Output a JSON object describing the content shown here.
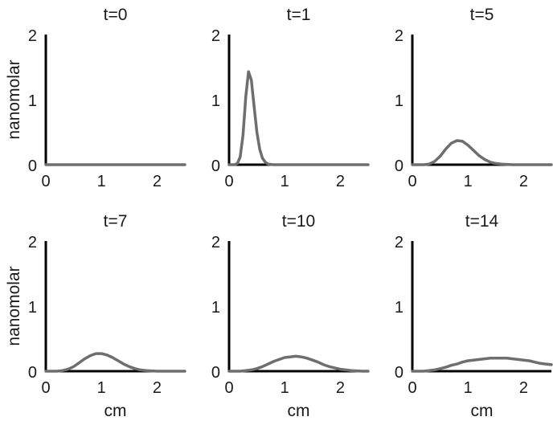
{
  "chart_data": [
    {
      "type": "line",
      "title": "t=0",
      "xlabel": "",
      "ylabel": "nanomolar",
      "xlim": [
        0,
        2.5
      ],
      "ylim": [
        0,
        2
      ],
      "xticks": [
        "0",
        "1",
        "2"
      ],
      "yticks": [
        "0",
        "1",
        "2"
      ],
      "series": [
        {
          "x": [
            0,
            0.25,
            0.5,
            0.75,
            1.0,
            1.25,
            1.5,
            1.75,
            2.0,
            2.25,
            2.5
          ],
          "y": [
            0,
            0,
            0,
            0,
            0,
            0,
            0,
            0,
            0,
            0,
            0
          ]
        }
      ]
    },
    {
      "type": "line",
      "title": "t=1",
      "xlabel": "",
      "ylabel": "",
      "xlim": [
        0,
        2.5
      ],
      "ylim": [
        0,
        2
      ],
      "xticks": [
        "0",
        "1",
        "2"
      ],
      "yticks": [
        "0",
        "1",
        "2"
      ],
      "series": [
        {
          "x": [
            0.0,
            0.1,
            0.15,
            0.2,
            0.25,
            0.3,
            0.35,
            0.4,
            0.45,
            0.5,
            0.55,
            0.6,
            0.65,
            0.7,
            0.8,
            1.0,
            1.5,
            2.0,
            2.5
          ],
          "y": [
            0.0,
            0.0,
            0.02,
            0.12,
            0.45,
            1.05,
            1.43,
            1.3,
            0.9,
            0.5,
            0.24,
            0.1,
            0.04,
            0.01,
            0.0,
            0.0,
            0.0,
            0.0,
            0.0
          ]
        }
      ]
    },
    {
      "type": "line",
      "title": "t=5",
      "xlabel": "",
      "ylabel": "",
      "xlim": [
        0,
        2.5
      ],
      "ylim": [
        0,
        2
      ],
      "xticks": [
        "0",
        "1",
        "2"
      ],
      "yticks": [
        "0",
        "1",
        "2"
      ],
      "series": [
        {
          "x": [
            0.0,
            0.2,
            0.3,
            0.4,
            0.5,
            0.6,
            0.7,
            0.8,
            0.9,
            1.0,
            1.1,
            1.2,
            1.3,
            1.4,
            1.5,
            1.6,
            1.8,
            2.0,
            2.5
          ],
          "y": [
            0.0,
            0.0,
            0.01,
            0.05,
            0.13,
            0.24,
            0.33,
            0.37,
            0.36,
            0.3,
            0.22,
            0.14,
            0.08,
            0.04,
            0.02,
            0.01,
            0.0,
            0.0,
            0.0
          ]
        }
      ]
    },
    {
      "type": "line",
      "title": "t=7",
      "xlabel": "cm",
      "ylabel": "nanomolar",
      "xlim": [
        0,
        2.5
      ],
      "ylim": [
        0,
        2
      ],
      "xticks": [
        "0",
        "1",
        "2"
      ],
      "yticks": [
        "0",
        "1",
        "2"
      ],
      "series": [
        {
          "x": [
            0.0,
            0.2,
            0.3,
            0.4,
            0.5,
            0.6,
            0.7,
            0.8,
            0.9,
            1.0,
            1.1,
            1.2,
            1.3,
            1.4,
            1.5,
            1.6,
            1.7,
            1.8,
            2.0,
            2.2,
            2.5
          ],
          "y": [
            0.0,
            0.0,
            0.01,
            0.03,
            0.07,
            0.13,
            0.19,
            0.24,
            0.27,
            0.27,
            0.25,
            0.21,
            0.16,
            0.11,
            0.07,
            0.04,
            0.02,
            0.01,
            0.0,
            0.0,
            0.0
          ]
        }
      ]
    },
    {
      "type": "line",
      "title": "t=10",
      "xlabel": "cm",
      "ylabel": "",
      "xlim": [
        0,
        2.5
      ],
      "ylim": [
        0,
        2
      ],
      "xticks": [
        "0",
        "1",
        "2"
      ],
      "yticks": [
        "0",
        "1",
        "2"
      ],
      "series": [
        {
          "x": [
            0.0,
            0.2,
            0.3,
            0.4,
            0.5,
            0.6,
            0.7,
            0.8,
            0.9,
            1.0,
            1.1,
            1.2,
            1.3,
            1.4,
            1.5,
            1.6,
            1.7,
            1.8,
            1.9,
            2.0,
            2.1,
            2.2,
            2.4,
            2.5
          ],
          "y": [
            0.0,
            0.0,
            0.01,
            0.02,
            0.04,
            0.07,
            0.11,
            0.15,
            0.18,
            0.21,
            0.22,
            0.23,
            0.22,
            0.2,
            0.17,
            0.14,
            0.1,
            0.07,
            0.05,
            0.03,
            0.02,
            0.01,
            0.0,
            0.0
          ]
        }
      ]
    },
    {
      "type": "line",
      "title": "t=14",
      "xlabel": "cm",
      "ylabel": "",
      "xlim": [
        0,
        2.5
      ],
      "ylim": [
        0,
        2
      ],
      "xticks": [
        "0",
        "1",
        "2"
      ],
      "yticks": [
        "0",
        "1",
        "2"
      ],
      "series": [
        {
          "x": [
            0.0,
            0.2,
            0.3,
            0.4,
            0.5,
            0.6,
            0.7,
            0.8,
            0.9,
            1.0,
            1.1,
            1.2,
            1.3,
            1.4,
            1.5,
            1.6,
            1.7,
            1.8,
            1.9,
            2.0,
            2.1,
            2.2,
            2.3,
            2.4,
            2.5
          ],
          "y": [
            0.0,
            0.0,
            0.01,
            0.02,
            0.04,
            0.06,
            0.09,
            0.11,
            0.14,
            0.16,
            0.17,
            0.18,
            0.19,
            0.2,
            0.2,
            0.2,
            0.2,
            0.19,
            0.18,
            0.17,
            0.16,
            0.14,
            0.12,
            0.11,
            0.1
          ]
        }
      ]
    }
  ]
}
